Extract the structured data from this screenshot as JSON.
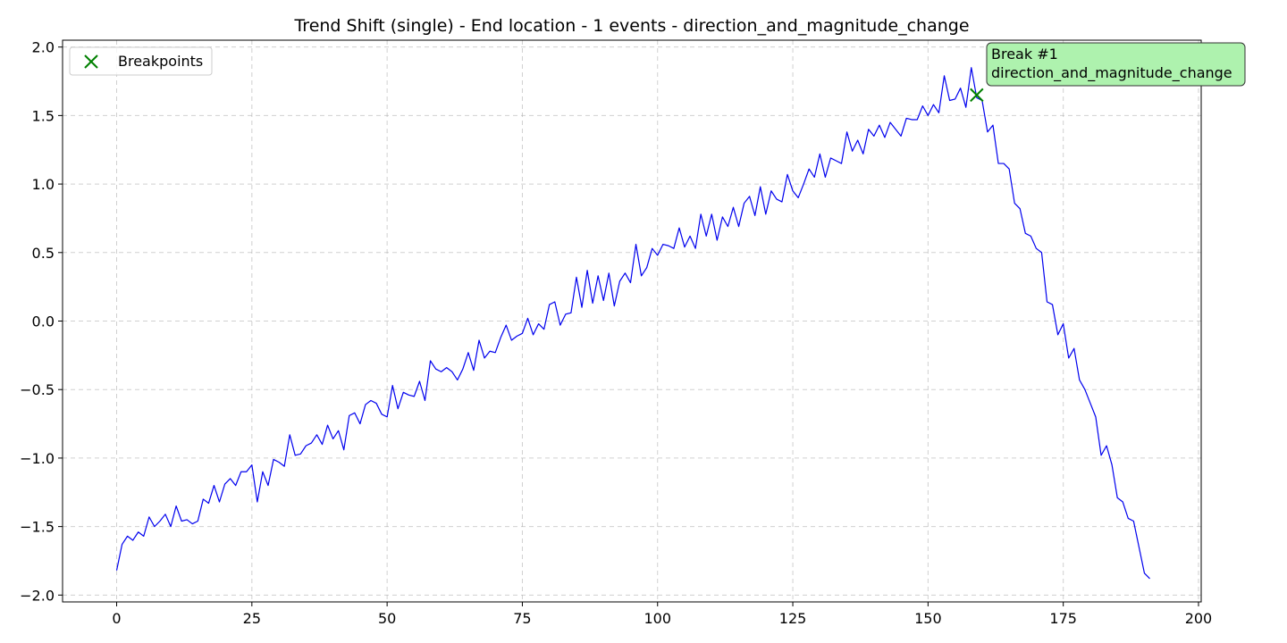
{
  "chart_data": {
    "type": "line",
    "title": "Trend Shift (single) - End location - 1 events - direction_and_magnitude_change",
    "xlabel": "",
    "ylabel": "",
    "xlim": [
      -10,
      200.5
    ],
    "ylim": [
      -2.05,
      2.05
    ],
    "x_ticks": [
      0,
      25,
      50,
      75,
      100,
      125,
      150,
      175,
      200
    ],
    "x_tick_labels": [
      "0",
      "25",
      "50",
      "75",
      "100",
      "125",
      "150",
      "175",
      "200"
    ],
    "y_ticks": [
      2.0,
      1.5,
      1.0,
      0.5,
      0.0,
      -0.5,
      -1.0,
      -1.5,
      -2.0
    ],
    "y_tick_labels": [
      "2.0",
      "1.5",
      "1.0",
      "0.5",
      "0.0",
      "−0.5",
      "−1.0",
      "−1.5",
      "−2.0"
    ],
    "grid": true,
    "legend": {
      "placement": "top-left",
      "entries": [
        "Breakpoints"
      ]
    },
    "series": [
      {
        "color": "#0000ee",
        "values": [
          -1.82,
          -1.63,
          -1.57,
          -1.6,
          -1.54,
          -1.57,
          -1.43,
          -1.5,
          -1.46,
          -1.41,
          -1.5,
          -1.35,
          -1.46,
          -1.45,
          -1.48,
          -1.46,
          -1.3,
          -1.33,
          -1.2,
          -1.32,
          -1.19,
          -1.15,
          -1.2,
          -1.1,
          -1.1,
          -1.05,
          -1.32,
          -1.1,
          -1.2,
          -1.01,
          -1.03,
          -1.06,
          -0.83,
          -0.98,
          -0.97,
          -0.91,
          -0.89,
          -0.83,
          -0.9,
          -0.76,
          -0.86,
          -0.8,
          -0.94,
          -0.69,
          -0.67,
          -0.75,
          -0.61,
          -0.58,
          -0.6,
          -0.68,
          -0.7,
          -0.47,
          -0.64,
          -0.52,
          -0.54,
          -0.55,
          -0.44,
          -0.58,
          -0.29,
          -0.35,
          -0.37,
          -0.34,
          -0.37,
          -0.43,
          -0.35,
          -0.23,
          -0.36,
          -0.14,
          -0.27,
          -0.22,
          -0.23,
          -0.12,
          -0.03,
          -0.14,
          -0.11,
          -0.09,
          0.02,
          -0.1,
          -0.02,
          -0.06,
          0.12,
          0.14,
          -0.03,
          0.05,
          0.06,
          0.32,
          0.1,
          0.37,
          0.13,
          0.33,
          0.15,
          0.35,
          0.11,
          0.29,
          0.35,
          0.28,
          0.56,
          0.33,
          0.39,
          0.53,
          0.48,
          0.56,
          0.55,
          0.53,
          0.68,
          0.54,
          0.62,
          0.53,
          0.78,
          0.62,
          0.78,
          0.59,
          0.76,
          0.69,
          0.83,
          0.69,
          0.86,
          0.91,
          0.77,
          0.98,
          0.78,
          0.95,
          0.89,
          0.87,
          1.07,
          0.95,
          0.9,
          1.0,
          1.11,
          1.05,
          1.22,
          1.05,
          1.19,
          1.17,
          1.15,
          1.38,
          1.24,
          1.32,
          1.22,
          1.4,
          1.35,
          1.43,
          1.34,
          1.45,
          1.4,
          1.35,
          1.48,
          1.47,
          1.47,
          1.57,
          1.5,
          1.58,
          1.52,
          1.79,
          1.61,
          1.62,
          1.7,
          1.56,
          1.85,
          1.63,
          1.61,
          1.38,
          1.43,
          1.15,
          1.15,
          1.11,
          0.86,
          0.82,
          0.64,
          0.62,
          0.53,
          0.5,
          0.14,
          0.12,
          -0.1,
          -0.02,
          -0.27,
          -0.2,
          -0.43,
          -0.5,
          -0.6,
          -0.7,
          -0.98,
          -0.91,
          -1.05,
          -1.29,
          -1.32,
          -1.44,
          -1.46,
          -1.65,
          -1.84,
          -1.88
        ]
      }
    ],
    "breakpoints": [
      {
        "x": 159,
        "y": 1.65,
        "color": "#008000"
      }
    ],
    "annotations": [
      {
        "line1": "Break #1",
        "line2": "direction_and_magnitude_change",
        "facecolor": "#aef2ae"
      }
    ]
  }
}
